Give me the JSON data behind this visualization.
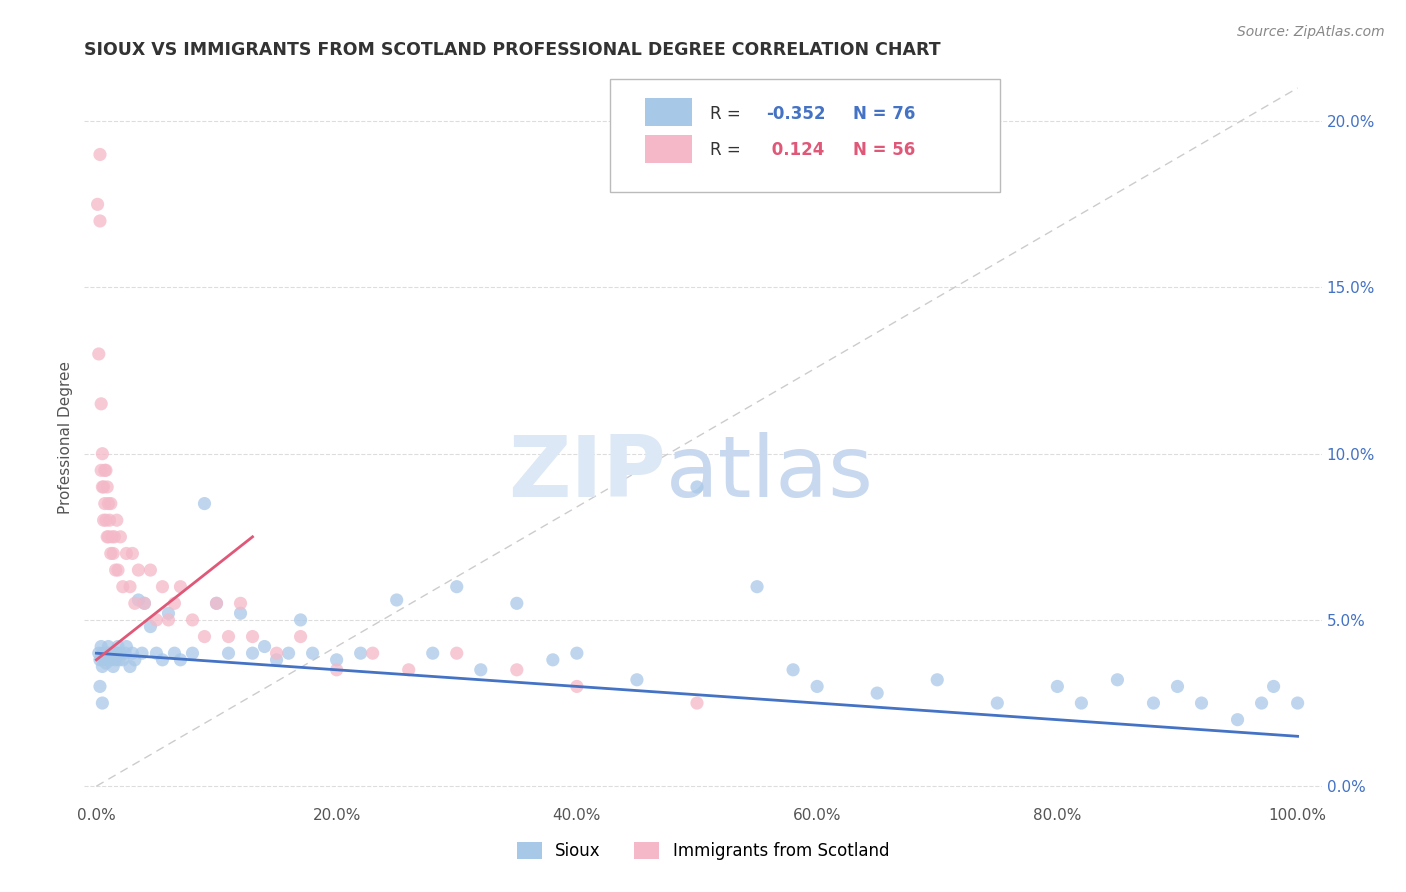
{
  "title": "SIOUX VS IMMIGRANTS FROM SCOTLAND PROFESSIONAL DEGREE CORRELATION CHART",
  "source": "Source: ZipAtlas.com",
  "ylabel": "Professional Degree",
  "xlim": [
    -0.01,
    1.02
  ],
  "ylim": [
    -0.005,
    0.215
  ],
  "xticks": [
    0.0,
    0.2,
    0.4,
    0.6,
    0.8,
    1.0
  ],
  "xtick_labels": [
    "0.0%",
    "20.0%",
    "40.0%",
    "60.0%",
    "80.0%",
    "100.0%"
  ],
  "yticks": [
    0.0,
    0.05,
    0.1,
    0.15,
    0.2
  ],
  "ytick_labels_left": [
    "",
    "",
    "",
    "",
    ""
  ],
  "ytick_labels_right": [
    "0.0%",
    "5.0%",
    "10.0%",
    "15.0%",
    "20.0%"
  ],
  "legend_blue_r": "-0.352",
  "legend_blue_n": "76",
  "legend_pink_r": "0.124",
  "legend_pink_n": "56",
  "blue_color": "#a8c8e8",
  "pink_color": "#f4b8c8",
  "blue_line_color": "#4472c4",
  "pink_line_color": "#e05878",
  "grid_color": "#dddddd",
  "ref_line_color": "#cccccc",
  "sioux_x": [
    0.002,
    0.003,
    0.004,
    0.005,
    0.006,
    0.006,
    0.007,
    0.008,
    0.009,
    0.01,
    0.01,
    0.011,
    0.012,
    0.013,
    0.014,
    0.015,
    0.016,
    0.017,
    0.018,
    0.019,
    0.02,
    0.022,
    0.024,
    0.025,
    0.028,
    0.03,
    0.032,
    0.035,
    0.038,
    0.04,
    0.045,
    0.05,
    0.055,
    0.06,
    0.065,
    0.07,
    0.08,
    0.09,
    0.1,
    0.11,
    0.12,
    0.13,
    0.14,
    0.15,
    0.16,
    0.17,
    0.18,
    0.2,
    0.22,
    0.25,
    0.28,
    0.3,
    0.32,
    0.35,
    0.38,
    0.4,
    0.45,
    0.5,
    0.55,
    0.58,
    0.6,
    0.65,
    0.7,
    0.75,
    0.8,
    0.82,
    0.85,
    0.88,
    0.9,
    0.92,
    0.95,
    0.97,
    0.98,
    1.0,
    0.003,
    0.005
  ],
  "sioux_y": [
    0.04,
    0.038,
    0.042,
    0.036,
    0.04,
    0.038,
    0.04,
    0.037,
    0.04,
    0.038,
    0.042,
    0.04,
    0.038,
    0.04,
    0.036,
    0.04,
    0.038,
    0.04,
    0.042,
    0.038,
    0.04,
    0.038,
    0.04,
    0.042,
    0.036,
    0.04,
    0.038,
    0.056,
    0.04,
    0.055,
    0.048,
    0.04,
    0.038,
    0.052,
    0.04,
    0.038,
    0.04,
    0.085,
    0.055,
    0.04,
    0.052,
    0.04,
    0.042,
    0.038,
    0.04,
    0.05,
    0.04,
    0.038,
    0.04,
    0.056,
    0.04,
    0.06,
    0.035,
    0.055,
    0.038,
    0.04,
    0.032,
    0.09,
    0.06,
    0.035,
    0.03,
    0.028,
    0.032,
    0.025,
    0.03,
    0.025,
    0.032,
    0.025,
    0.03,
    0.025,
    0.02,
    0.025,
    0.03,
    0.025,
    0.03,
    0.025
  ],
  "scotland_x": [
    0.001,
    0.002,
    0.003,
    0.003,
    0.004,
    0.004,
    0.005,
    0.005,
    0.006,
    0.006,
    0.007,
    0.007,
    0.008,
    0.008,
    0.009,
    0.009,
    0.01,
    0.01,
    0.011,
    0.012,
    0.012,
    0.013,
    0.014,
    0.015,
    0.016,
    0.017,
    0.018,
    0.02,
    0.022,
    0.025,
    0.028,
    0.03,
    0.032,
    0.035,
    0.04,
    0.045,
    0.05,
    0.055,
    0.06,
    0.065,
    0.07,
    0.08,
    0.09,
    0.1,
    0.11,
    0.12,
    0.13,
    0.15,
    0.17,
    0.2,
    0.23,
    0.26,
    0.3,
    0.35,
    0.4,
    0.5
  ],
  "scotland_y": [
    0.175,
    0.13,
    0.19,
    0.17,
    0.095,
    0.115,
    0.09,
    0.1,
    0.09,
    0.08,
    0.095,
    0.085,
    0.08,
    0.095,
    0.075,
    0.09,
    0.075,
    0.085,
    0.08,
    0.07,
    0.085,
    0.075,
    0.07,
    0.075,
    0.065,
    0.08,
    0.065,
    0.075,
    0.06,
    0.07,
    0.06,
    0.07,
    0.055,
    0.065,
    0.055,
    0.065,
    0.05,
    0.06,
    0.05,
    0.055,
    0.06,
    0.05,
    0.045,
    0.055,
    0.045,
    0.055,
    0.045,
    0.04,
    0.045,
    0.035,
    0.04,
    0.035,
    0.04,
    0.035,
    0.03,
    0.025
  ],
  "blue_trend_x": [
    0.0,
    1.0
  ],
  "blue_trend_y": [
    0.04,
    0.015
  ],
  "pink_trend_x": [
    0.0,
    0.13
  ],
  "pink_trend_y": [
    0.038,
    0.075
  ]
}
